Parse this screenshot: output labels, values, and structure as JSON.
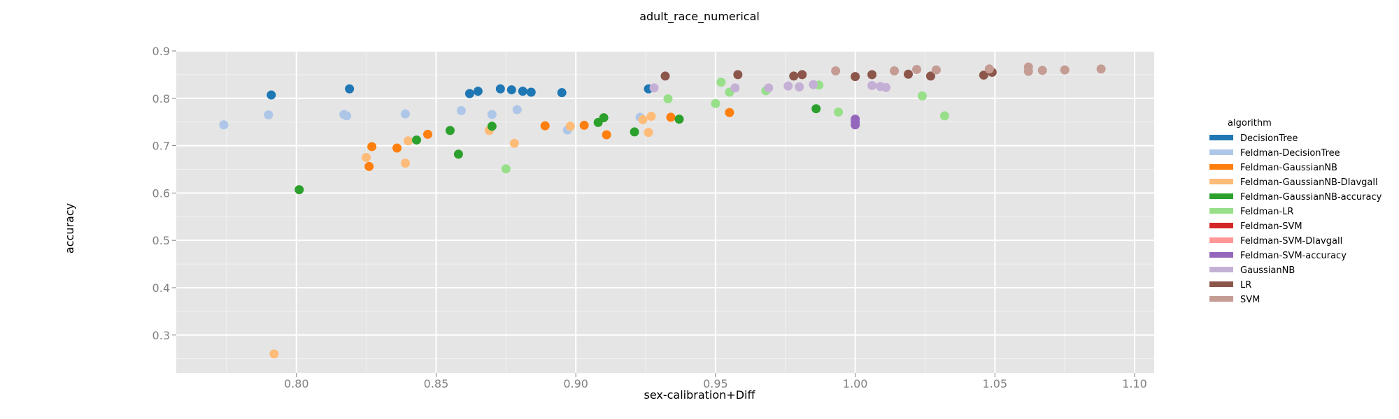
{
  "chart_data": {
    "type": "scatter",
    "title": "adult_race_numerical",
    "xlabel": "sex-calibration+Diff",
    "ylabel": "accuracy",
    "xlim": [
      0.757,
      1.107
    ],
    "ylim": [
      0.22,
      0.9
    ],
    "xticks": [
      0.8,
      0.85,
      0.9,
      0.95,
      1.0,
      1.05,
      1.1
    ],
    "xtick_labels": [
      "0.80",
      "0.85",
      "0.90",
      "0.95",
      "1.00",
      "1.05",
      "1.10"
    ],
    "yticks": [
      0.3,
      0.4,
      0.5,
      0.6,
      0.7,
      0.8,
      0.9
    ],
    "ytick_labels": [
      "0.3",
      "0.4",
      "0.5",
      "0.6",
      "0.7",
      "0.8",
      "0.9"
    ],
    "grid": true,
    "legend": {
      "title": "algorithm",
      "position": "right"
    },
    "series": [
      {
        "name": "DecisionTree",
        "color": "#1f77b4",
        "points": [
          [
            0.791,
            0.807
          ],
          [
            0.819,
            0.82
          ],
          [
            0.862,
            0.81
          ],
          [
            0.865,
            0.815
          ],
          [
            0.873,
            0.82
          ],
          [
            0.877,
            0.818
          ],
          [
            0.881,
            0.815
          ],
          [
            0.884,
            0.813
          ],
          [
            0.895,
            0.812
          ],
          [
            0.926,
            0.82
          ]
        ]
      },
      {
        "name": "Feldman-DecisionTree",
        "color": "#aec7e8",
        "points": [
          [
            0.774,
            0.744
          ],
          [
            0.79,
            0.765
          ],
          [
            0.817,
            0.766
          ],
          [
            0.818,
            0.763
          ],
          [
            0.839,
            0.767
          ],
          [
            0.859,
            0.774
          ],
          [
            0.87,
            0.766
          ],
          [
            0.879,
            0.776
          ],
          [
            0.897,
            0.733
          ],
          [
            0.923,
            0.76
          ]
        ]
      },
      {
        "name": "Feldman-GaussianNB",
        "color": "#ff7f0e",
        "points": [
          [
            0.826,
            0.656
          ],
          [
            0.827,
            0.698
          ],
          [
            0.836,
            0.695
          ],
          [
            0.847,
            0.724
          ],
          [
            0.889,
            0.742
          ],
          [
            0.903,
            0.743
          ],
          [
            0.911,
            0.723
          ],
          [
            0.934,
            0.76
          ],
          [
            0.955,
            0.77
          ]
        ]
      },
      {
        "name": "Feldman-GaussianNB-DIavgall",
        "color": "#ffbb78",
        "points": [
          [
            0.792,
            0.26
          ],
          [
            0.825,
            0.675
          ],
          [
            0.839,
            0.663
          ],
          [
            0.84,
            0.71
          ],
          [
            0.869,
            0.732
          ],
          [
            0.878,
            0.705
          ],
          [
            0.898,
            0.741
          ],
          [
            0.924,
            0.755
          ],
          [
            0.926,
            0.728
          ],
          [
            0.927,
            0.762
          ]
        ]
      },
      {
        "name": "Feldman-GaussianNB-accuracy",
        "color": "#2ca02c",
        "points": [
          [
            0.801,
            0.607
          ],
          [
            0.843,
            0.712
          ],
          [
            0.855,
            0.732
          ],
          [
            0.858,
            0.682
          ],
          [
            0.87,
            0.741
          ],
          [
            0.908,
            0.749
          ],
          [
            0.91,
            0.759
          ],
          [
            0.921,
            0.729
          ],
          [
            0.937,
            0.756
          ],
          [
            0.986,
            0.778
          ]
        ]
      },
      {
        "name": "Feldman-LR",
        "color": "#98df8a",
        "points": [
          [
            0.875,
            0.651
          ],
          [
            0.933,
            0.799
          ],
          [
            0.95,
            0.789
          ],
          [
            0.952,
            0.834
          ],
          [
            0.955,
            0.813
          ],
          [
            0.968,
            0.816
          ],
          [
            0.987,
            0.828
          ],
          [
            0.994,
            0.771
          ],
          [
            1.024,
            0.805
          ],
          [
            1.032,
            0.763
          ]
        ]
      },
      {
        "name": "Feldman-SVM",
        "color": "#d62728",
        "points": []
      },
      {
        "name": "Feldman-SVM-DIavgall",
        "color": "#ff9896",
        "points": []
      },
      {
        "name": "Feldman-SVM-accuracy",
        "color": "#9467bd",
        "points": [
          [
            1.0,
            0.744
          ],
          [
            1.0,
            0.75
          ],
          [
            1.0,
            0.756
          ]
        ]
      },
      {
        "name": "GaussianNB",
        "color": "#c5b0d5",
        "points": [
          [
            0.928,
            0.822
          ],
          [
            0.957,
            0.822
          ],
          [
            0.969,
            0.822
          ],
          [
            0.976,
            0.826
          ],
          [
            0.98,
            0.824
          ],
          [
            0.985,
            0.829
          ],
          [
            1.006,
            0.827
          ],
          [
            1.009,
            0.825
          ],
          [
            1.011,
            0.823
          ]
        ]
      },
      {
        "name": "LR",
        "color": "#8c564b",
        "points": [
          [
            0.932,
            0.847
          ],
          [
            0.958,
            0.85
          ],
          [
            0.978,
            0.847
          ],
          [
            0.981,
            0.85
          ],
          [
            1.0,
            0.846
          ],
          [
            1.006,
            0.85
          ],
          [
            1.019,
            0.851
          ],
          [
            1.027,
            0.847
          ],
          [
            1.046,
            0.849
          ],
          [
            1.049,
            0.855
          ]
        ]
      },
      {
        "name": "SVM",
        "color": "#c49c94",
        "points": [
          [
            0.993,
            0.858
          ],
          [
            1.014,
            0.858
          ],
          [
            1.022,
            0.861
          ],
          [
            1.029,
            0.86
          ],
          [
            1.048,
            0.862
          ],
          [
            1.062,
            0.857
          ],
          [
            1.062,
            0.866
          ],
          [
            1.067,
            0.859
          ],
          [
            1.075,
            0.86
          ],
          [
            1.088,
            0.862
          ]
        ]
      }
    ]
  }
}
